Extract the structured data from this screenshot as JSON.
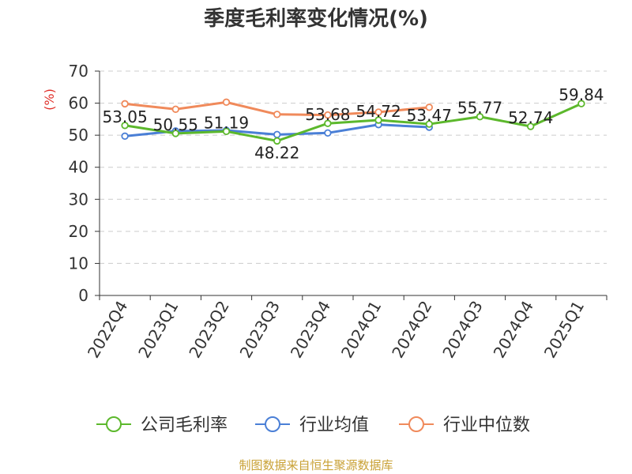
{
  "chart_data": {
    "type": "line",
    "title": "季度毛利率变化情况(%)",
    "ylabel": "(%)",
    "xlabel": "",
    "categories": [
      "2022Q4",
      "2023Q1",
      "2023Q2",
      "2023Q3",
      "2023Q4",
      "2024Q1",
      "2024Q2",
      "2024Q3",
      "2024Q4",
      "2025Q1"
    ],
    "ylim": [
      0,
      70
    ],
    "yticks": [
      0,
      10,
      20,
      30,
      40,
      50,
      60,
      70
    ],
    "grid": true,
    "legend_position": "bottom",
    "series": [
      {
        "name": "公司毛利率",
        "color": "#5cb82c",
        "values": [
          53.05,
          50.55,
          51.19,
          48.22,
          53.68,
          54.72,
          53.47,
          55.77,
          52.74,
          59.84
        ],
        "labels": [
          "53.05",
          "50.55",
          "51.19",
          "48.22",
          "53.68",
          "54.72",
          "53.47",
          "55.77",
          "52.74",
          "59.84"
        ]
      },
      {
        "name": "行业均值",
        "color": "#4a7fd6",
        "values": [
          49.7,
          51.3,
          51.5,
          50.2,
          50.7,
          53.3,
          52.5,
          null,
          null,
          null
        ]
      },
      {
        "name": "行业中位数",
        "color": "#f08a5b",
        "values": [
          59.8,
          58.1,
          60.3,
          56.5,
          56.3,
          57.2,
          58.7,
          null,
          null,
          null
        ]
      }
    ],
    "source": "制图数据来自恒生聚源数据库",
    "colors": {
      "axis": "#333333",
      "grid": "#cccccc",
      "ylabel": "#e0302a",
      "source": "#c9a135",
      "title": "#333333"
    }
  }
}
